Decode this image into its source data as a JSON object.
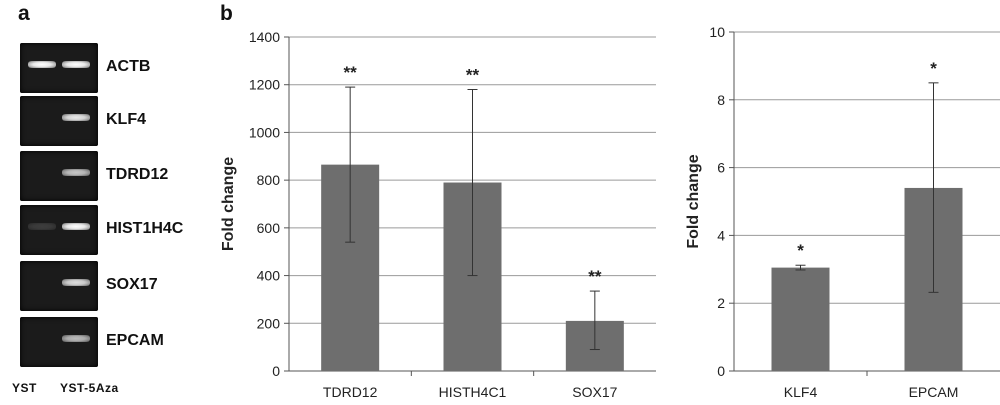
{
  "panel_a": {
    "label": "a",
    "genes": [
      {
        "name": "ACTB",
        "yst": 1.0,
        "yst5aza": 1.0
      },
      {
        "name": "KLF4",
        "yst": 0.0,
        "yst5aza": 0.9
      },
      {
        "name": "TDRD12",
        "yst": 0.0,
        "yst5aza": 0.75
      },
      {
        "name": "HIST1H4C",
        "yst": 0.15,
        "yst5aza": 1.0
      },
      {
        "name": "SOX17",
        "yst": 0.0,
        "yst5aza": 0.85
      },
      {
        "name": "EPCAM",
        "yst": 0.0,
        "yst5aza": 0.7
      }
    ],
    "lanes": [
      "YST",
      "YST-5Aza"
    ]
  },
  "panel_b_label": "b",
  "chart_data": [
    {
      "type": "bar",
      "categories": [
        "TDRD12",
        "HISTH4C1",
        "SOX17"
      ],
      "values": [
        865,
        790,
        210
      ],
      "error_upper": [
        1190,
        1180,
        335
      ],
      "error_lower": [
        540,
        400,
        90
      ],
      "significance": [
        "**",
        "**",
        "**"
      ],
      "ylabel": "Fold change",
      "ylim": [
        0,
        1400
      ],
      "yticks": [
        0,
        200,
        400,
        600,
        800,
        1000,
        1200,
        1400
      ],
      "grid": true,
      "bar_color": "#6e6e6e"
    },
    {
      "type": "bar",
      "categories": [
        "KLF4",
        "EPCAM"
      ],
      "values": [
        3.05,
        5.4
      ],
      "error_upper": [
        3.12,
        8.5
      ],
      "error_lower": [
        2.98,
        2.32
      ],
      "significance": [
        "*",
        "*"
      ],
      "ylabel": "Fold change",
      "ylim": [
        0,
        10
      ],
      "yticks": [
        0,
        2,
        4,
        6,
        8,
        10
      ],
      "grid": true,
      "bar_color": "#6e6e6e"
    }
  ]
}
